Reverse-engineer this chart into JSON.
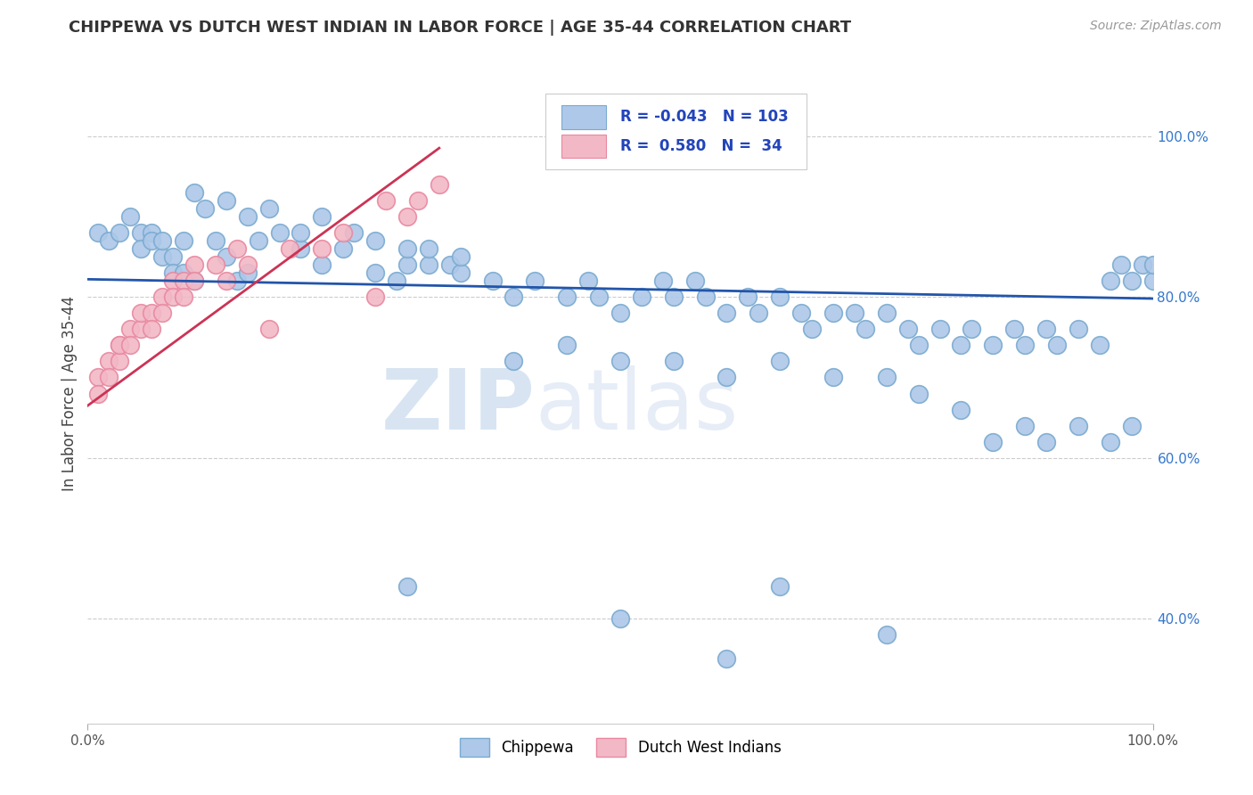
{
  "title": "CHIPPEWA VS DUTCH WEST INDIAN IN LABOR FORCE | AGE 35-44 CORRELATION CHART",
  "source": "Source: ZipAtlas.com",
  "ylabel": "In Labor Force | Age 35-44",
  "xlim": [
    0.0,
    1.0
  ],
  "ylim": [
    0.27,
    1.09
  ],
  "r_blue": -0.043,
  "n_blue": 103,
  "r_pink": 0.58,
  "n_pink": 34,
  "blue_color": "#adc8e8",
  "blue_edge": "#7aaad0",
  "pink_color": "#f2b8c6",
  "pink_edge": "#e888a0",
  "blue_line_color": "#2255aa",
  "pink_line_color": "#cc3355",
  "grid_color": "#cccccc",
  "background_color": "#ffffff",
  "watermark_zip": "ZIP",
  "watermark_atlas": "atlas",
  "legend_blue_label": "Chippewa",
  "legend_pink_label": "Dutch West Indians",
  "blue_x": [
    0.01,
    0.02,
    0.03,
    0.04,
    0.05,
    0.05,
    0.06,
    0.06,
    0.07,
    0.07,
    0.08,
    0.08,
    0.09,
    0.09,
    0.1,
    0.12,
    0.13,
    0.14,
    0.15,
    0.16,
    0.18,
    0.2,
    0.22,
    0.24,
    0.27,
    0.29,
    0.3,
    0.32,
    0.34,
    0.35,
    0.38,
    0.4,
    0.42,
    0.45,
    0.47,
    0.48,
    0.5,
    0.52,
    0.54,
    0.55,
    0.57,
    0.58,
    0.6,
    0.62,
    0.63,
    0.65,
    0.67,
    0.68,
    0.7,
    0.72,
    0.73,
    0.75,
    0.77,
    0.78,
    0.8,
    0.82,
    0.83,
    0.85,
    0.87,
    0.88,
    0.9,
    0.91,
    0.93,
    0.95,
    0.96,
    0.97,
    0.98,
    0.99,
    1.0,
    1.0,
    0.1,
    0.11,
    0.13,
    0.15,
    0.17,
    0.2,
    0.22,
    0.25,
    0.27,
    0.3,
    0.32,
    0.35,
    0.4,
    0.45,
    0.5,
    0.55,
    0.6,
    0.65,
    0.7,
    0.75,
    0.78,
    0.82,
    0.85,
    0.88,
    0.9,
    0.93,
    0.96,
    0.98,
    0.3,
    0.65,
    0.5,
    0.75,
    0.6
  ],
  "blue_y": [
    0.88,
    0.87,
    0.88,
    0.9,
    0.88,
    0.86,
    0.88,
    0.87,
    0.85,
    0.87,
    0.85,
    0.83,
    0.87,
    0.83,
    0.82,
    0.87,
    0.85,
    0.82,
    0.83,
    0.87,
    0.88,
    0.86,
    0.84,
    0.86,
    0.83,
    0.82,
    0.84,
    0.84,
    0.84,
    0.83,
    0.82,
    0.8,
    0.82,
    0.8,
    0.82,
    0.8,
    0.78,
    0.8,
    0.82,
    0.8,
    0.82,
    0.8,
    0.78,
    0.8,
    0.78,
    0.8,
    0.78,
    0.76,
    0.78,
    0.78,
    0.76,
    0.78,
    0.76,
    0.74,
    0.76,
    0.74,
    0.76,
    0.74,
    0.76,
    0.74,
    0.76,
    0.74,
    0.76,
    0.74,
    0.82,
    0.84,
    0.82,
    0.84,
    0.82,
    0.84,
    0.93,
    0.91,
    0.92,
    0.9,
    0.91,
    0.88,
    0.9,
    0.88,
    0.87,
    0.86,
    0.86,
    0.85,
    0.72,
    0.74,
    0.72,
    0.72,
    0.7,
    0.72,
    0.7,
    0.7,
    0.68,
    0.66,
    0.62,
    0.64,
    0.62,
    0.64,
    0.62,
    0.64,
    0.44,
    0.44,
    0.4,
    0.38,
    0.35
  ],
  "pink_x": [
    0.01,
    0.01,
    0.02,
    0.02,
    0.03,
    0.03,
    0.03,
    0.04,
    0.04,
    0.05,
    0.05,
    0.06,
    0.06,
    0.07,
    0.07,
    0.08,
    0.08,
    0.09,
    0.09,
    0.1,
    0.1,
    0.12,
    0.13,
    0.14,
    0.15,
    0.17,
    0.19,
    0.22,
    0.24,
    0.27,
    0.28,
    0.3,
    0.31,
    0.33
  ],
  "pink_y": [
    0.7,
    0.68,
    0.72,
    0.7,
    0.74,
    0.72,
    0.74,
    0.76,
    0.74,
    0.76,
    0.78,
    0.78,
    0.76,
    0.8,
    0.78,
    0.82,
    0.8,
    0.82,
    0.8,
    0.84,
    0.82,
    0.84,
    0.82,
    0.86,
    0.84,
    0.76,
    0.86,
    0.86,
    0.88,
    0.8,
    0.92,
    0.9,
    0.92,
    0.94
  ],
  "blue_trend_x": [
    0.0,
    1.0
  ],
  "blue_trend_y": [
    0.822,
    0.798
  ],
  "pink_trend_x": [
    0.0,
    0.33
  ],
  "pink_trend_y": [
    0.665,
    0.985
  ]
}
